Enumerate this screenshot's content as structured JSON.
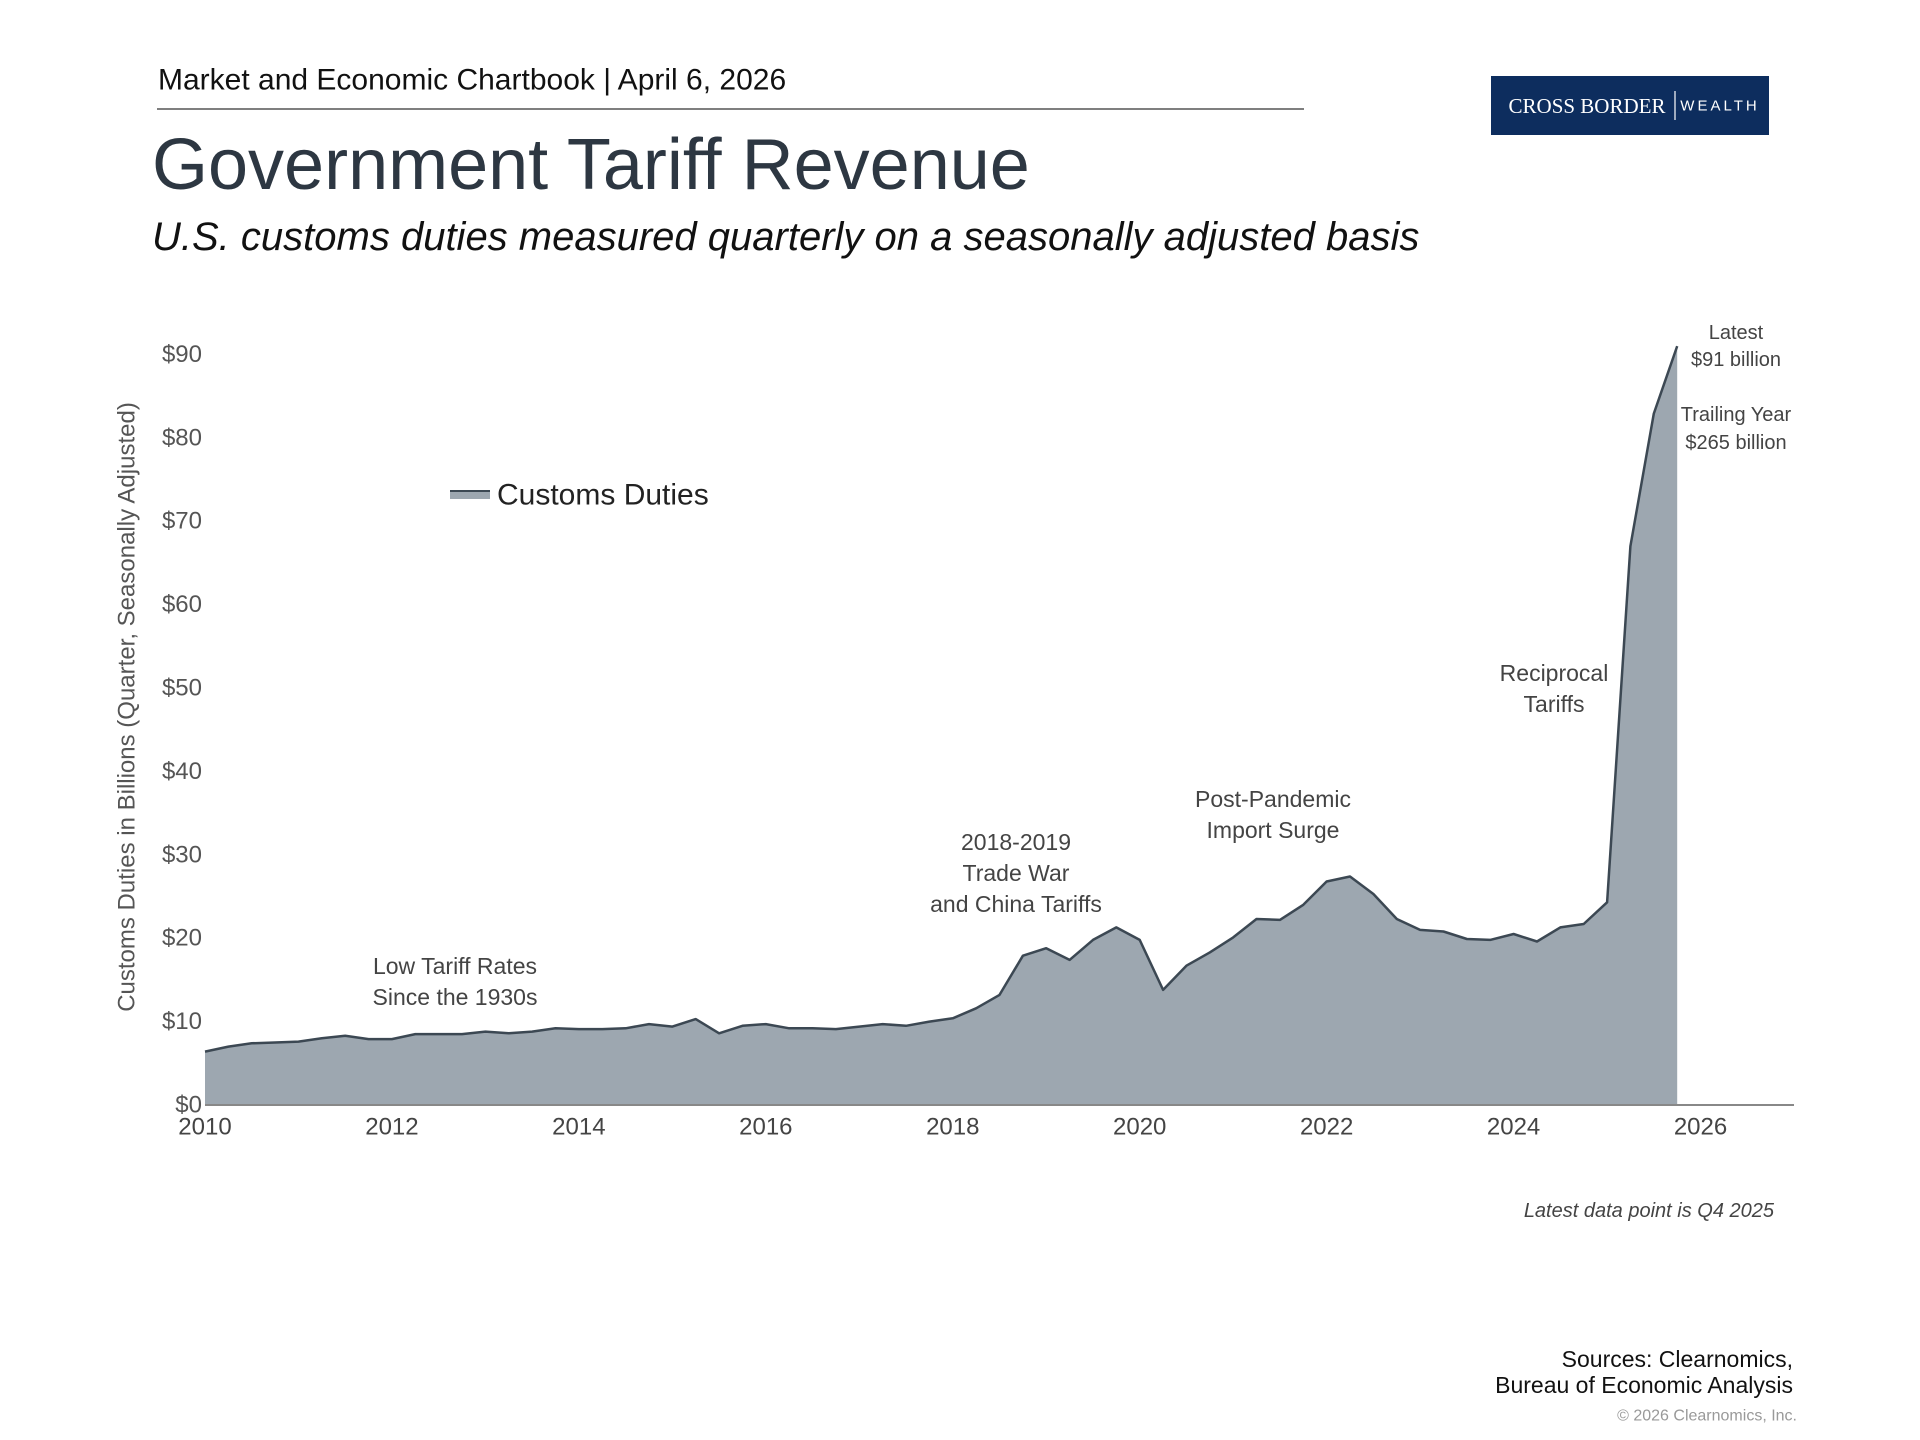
{
  "header": {
    "kicker": "Market and Economic Chartbook | April 6, 2026",
    "logo_main": "CROSS BORDER",
    "logo_sub": "WEALTH"
  },
  "chart_data": {
    "type": "area",
    "title": "Government Tariff Revenue",
    "subtitle": "U.S. customs duties measured quarterly on a seasonally adjusted basis",
    "y_label": "Customs Duties in Billions (Quarter, Seasonally Adjusted)",
    "x": [
      2010,
      2010.25,
      2010.5,
      2010.75,
      2011,
      2011.25,
      2011.5,
      2011.75,
      2012,
      2012.25,
      2012.5,
      2012.75,
      2013,
      2013.25,
      2013.5,
      2013.75,
      2014,
      2014.25,
      2014.5,
      2014.75,
      2015,
      2015.25,
      2015.5,
      2015.75,
      2016,
      2016.25,
      2016.5,
      2016.75,
      2017,
      2017.25,
      2017.5,
      2017.75,
      2018,
      2018.25,
      2018.5,
      2018.75,
      2019,
      2019.25,
      2019.5,
      2019.75,
      2020,
      2020.25,
      2020.5,
      2020.75,
      2021,
      2021.25,
      2021.5,
      2021.75,
      2022,
      2022.25,
      2022.5,
      2022.75,
      2023,
      2023.25,
      2023.5,
      2023.75,
      2024,
      2024.25,
      2024.5,
      2024.75,
      2025,
      2025.25,
      2025.5,
      2025.75
    ],
    "series": [
      {
        "name": "Customs Duties",
        "color": "#9da7b0",
        "line_color": "#3c4853",
        "values": [
          6.4,
          7.0,
          7.4,
          7.5,
          7.6,
          8.0,
          8.3,
          7.9,
          7.9,
          8.5,
          8.5,
          8.5,
          8.8,
          8.6,
          8.8,
          9.2,
          9.1,
          9.1,
          9.2,
          9.7,
          9.4,
          10.3,
          8.6,
          9.5,
          9.7,
          9.2,
          9.2,
          9.1,
          9.4,
          9.7,
          9.5,
          10.0,
          10.4,
          11.6,
          13.2,
          17.9,
          18.8,
          17.4,
          19.8,
          21.3,
          19.8,
          13.8,
          16.7,
          18.3,
          20.1,
          22.3,
          22.2,
          24.0,
          26.8,
          27.4,
          25.3,
          22.3,
          21.0,
          20.8,
          19.9,
          19.8,
          20.5,
          19.6,
          21.3,
          21.7,
          24.3,
          67.0,
          82.9,
          91
        ]
      }
    ],
    "xlim": [
      2010,
      2027
    ],
    "xticks": [
      2010,
      2012,
      2014,
      2016,
      2018,
      2020,
      2022,
      2024,
      2026
    ],
    "ylim": [
      0,
      100
    ],
    "yticks": [
      {
        "value": 0,
        "label": "$0"
      },
      {
        "value": 10,
        "label": "$10"
      },
      {
        "value": 20,
        "label": "$20"
      },
      {
        "value": 30,
        "label": "$30"
      },
      {
        "value": 40,
        "label": "$40"
      },
      {
        "value": 50,
        "label": "$50"
      },
      {
        "value": 60,
        "label": "$60"
      },
      {
        "value": 70,
        "label": "$70"
      },
      {
        "value": 80,
        "label": "$80"
      },
      {
        "value": 90,
        "label": "$90"
      }
    ],
    "grid": false,
    "legend": "top-left",
    "annotations": [
      {
        "lines": [
          "Low Tariff Rates",
          "Since the 1930s"
        ]
      },
      {
        "lines": [
          "2018-2019",
          "Trade War",
          "and China Tariffs"
        ]
      },
      {
        "lines": [
          "Post-Pandemic",
          "Import Surge"
        ]
      },
      {
        "lines": [
          "Reciprocal",
          "Tariffs"
        ]
      },
      {
        "lines": [
          "Latest",
          "$91 billion"
        ]
      },
      {
        "lines": [
          "Trailing Year",
          "$265 billion"
        ]
      }
    ]
  },
  "footer": {
    "note": "Latest data point is Q4 2025",
    "sources": [
      "Sources: Clearnomics,",
      "Bureau of Economic Analysis"
    ],
    "copyright": "© 2026 Clearnomics, Inc."
  }
}
